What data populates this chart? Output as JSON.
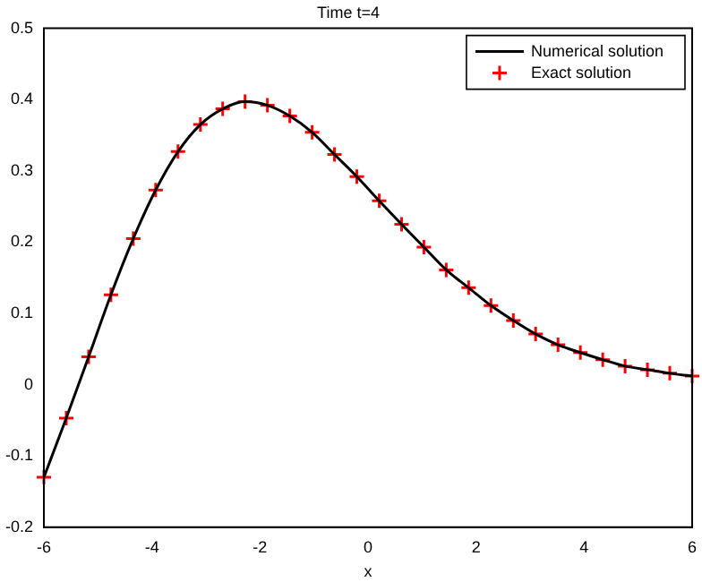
{
  "chart_data": {
    "type": "line",
    "title": "Time t=4",
    "xlabel": "x",
    "x": [
      -6,
      -5.586,
      -5.172,
      -4.759,
      -4.345,
      -3.931,
      -3.517,
      -3.103,
      -2.69,
      -2.276,
      -1.862,
      -1.448,
      -1.034,
      -0.621,
      -0.207,
      0.207,
      0.621,
      1.034,
      1.448,
      1.862,
      2.276,
      2.69,
      3.103,
      3.517,
      3.931,
      4.345,
      4.759,
      5.172,
      5.586,
      6
    ],
    "series": [
      {
        "name": "Numerical solution",
        "type": "line",
        "color": "#000000",
        "marker": "none",
        "line_style": "solid",
        "values": [
          -0.13,
          -0.047,
          0.039,
          0.126,
          0.205,
          0.273,
          0.327,
          0.365,
          0.387,
          0.397,
          0.392,
          0.377,
          0.354,
          0.323,
          0.292,
          0.258,
          0.225,
          0.193,
          0.161,
          0.136,
          0.111,
          0.09,
          0.071,
          0.056,
          0.045,
          0.035,
          0.026,
          0.021,
          0.016,
          0.012
        ]
      },
      {
        "name": "Exact solution",
        "type": "scatter",
        "color": "#ff0000",
        "marker": "cross",
        "values": [
          -0.13,
          -0.047,
          0.039,
          0.126,
          0.205,
          0.273,
          0.327,
          0.365,
          0.387,
          0.397,
          0.392,
          0.377,
          0.354,
          0.323,
          0.292,
          0.258,
          0.225,
          0.193,
          0.161,
          0.136,
          0.111,
          0.09,
          0.071,
          0.056,
          0.045,
          0.035,
          0.026,
          0.021,
          0.016,
          0.012
        ]
      }
    ],
    "xlim": [
      -6,
      6
    ],
    "xticks": [
      -6,
      -4,
      -2,
      0,
      2,
      4,
      6
    ],
    "ylim": [
      -0.2,
      0.5
    ],
    "yticks": [
      -0.2,
      -0.1,
      0,
      0.1,
      0.2,
      0.3,
      0.4,
      0.5
    ],
    "grid": false,
    "legend": "top right"
  }
}
